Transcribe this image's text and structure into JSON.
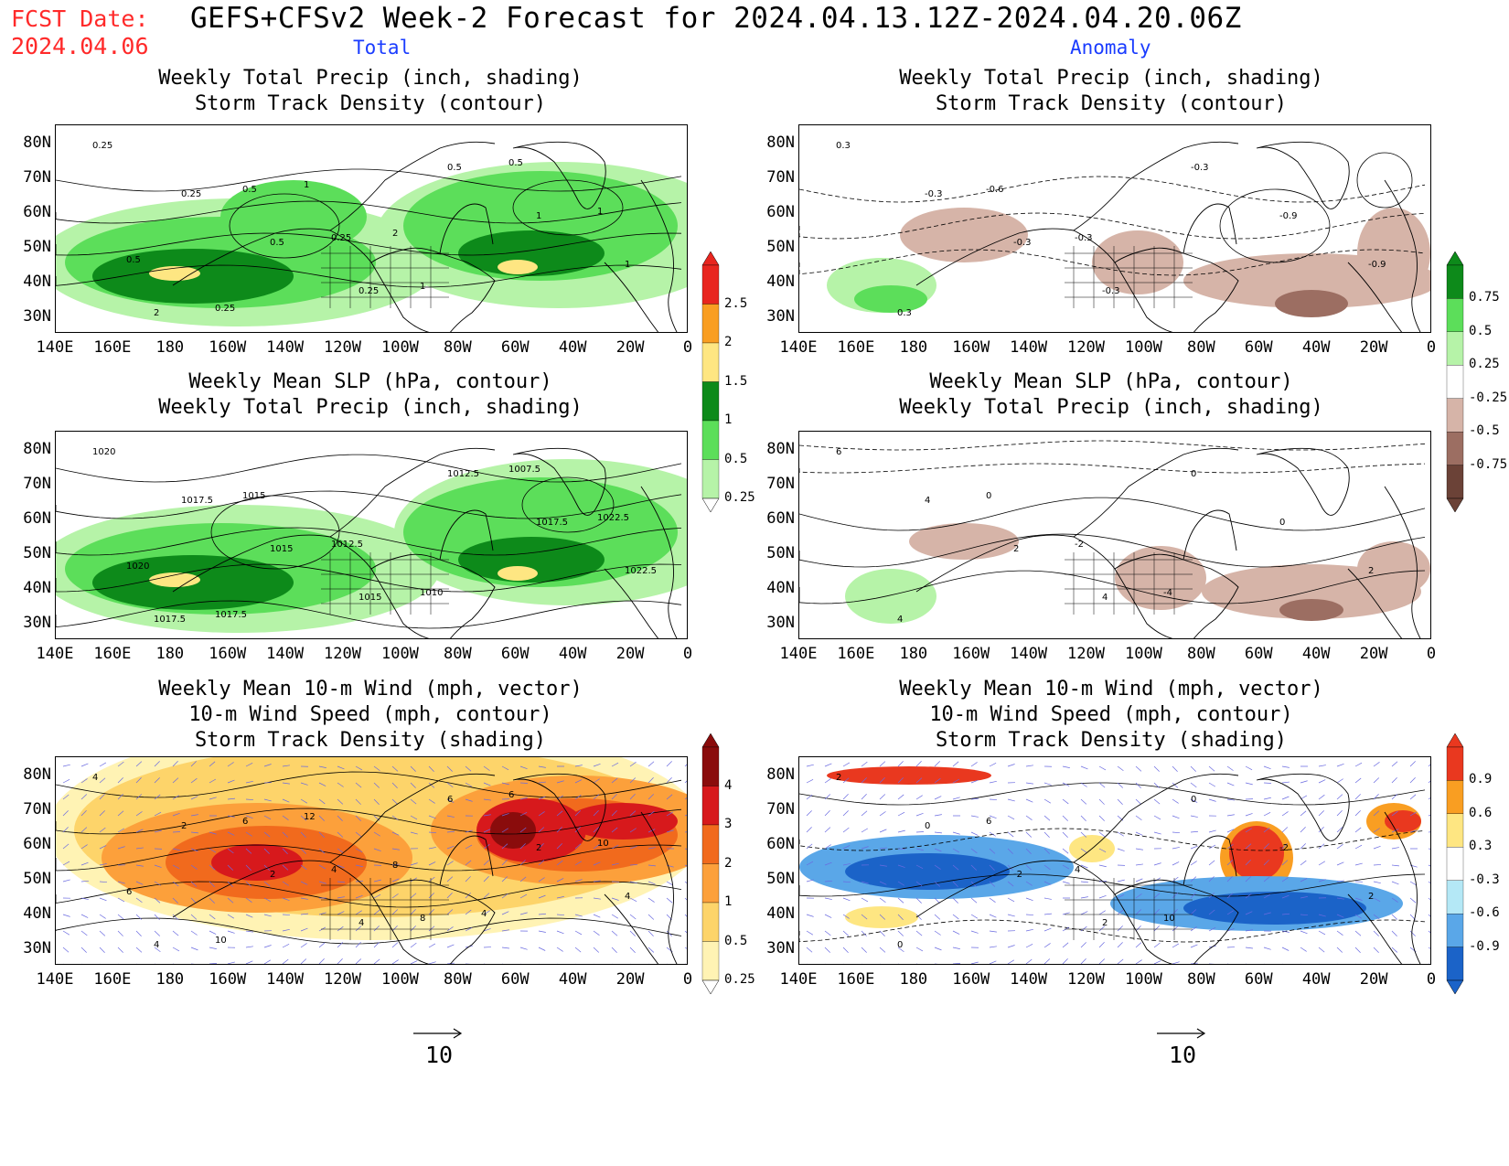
{
  "header": {
    "fcst_label": "FCST Date:",
    "fcst_date": "2024.04.06",
    "title": "GEFS+CFSv2 Week-2 Forecast for 2024.04.13.12Z-2024.04.20.06Z",
    "col_total": "Total",
    "col_anomaly": "Anomaly"
  },
  "axes": {
    "lat_labels": [
      "80N",
      "70N",
      "60N",
      "50N",
      "40N",
      "30N"
    ],
    "lon_labels": [
      "140E",
      "160E",
      "180",
      "160W",
      "140W",
      "120W",
      "100W",
      "80W",
      "60W",
      "40W",
      "20W",
      "0"
    ]
  },
  "panels": [
    {
      "id": "total-precip-storm",
      "title1": "Weekly Total Precip (inch, shading)",
      "title2": "Storm Track Density (contour)",
      "title3": "",
      "contour_labels": [
        "0.25",
        "0.25",
        "0.5",
        "0.25",
        "0.5",
        "1",
        "1",
        "2",
        "0.5",
        "0.25",
        "1",
        "0.5",
        "1",
        "0.5",
        "0.25",
        "1",
        "2"
      ]
    },
    {
      "id": "anom-precip-storm",
      "title1": "Weekly Total Precip (inch, shading)",
      "title2": "Storm Track Density (contour)",
      "title3": "",
      "contour_labels": [
        "0.3",
        "-0.3",
        "-0.3",
        "-0.3",
        "-0.3",
        "-0.9",
        "-0.9",
        "0.3",
        "-0.6",
        "-0.3"
      ]
    },
    {
      "id": "total-slp-precip",
      "title1": "Weekly Mean SLP (hPa, contour)",
      "title2": "Weekly Total Precip (inch, shading)",
      "title3": "",
      "contour_labels": [
        "1020",
        "1017.5",
        "1015",
        "1015",
        "1012.5",
        "1017.5",
        "1022.5",
        "1017.5",
        "1015",
        "1012.5",
        "1010",
        "1007.5",
        "1022.5",
        "1020",
        "1017.5"
      ]
    },
    {
      "id": "anom-slp-precip",
      "title1": "Weekly Mean SLP (hPa, contour)",
      "title2": "Weekly Total Precip (inch, shading)",
      "title3": "",
      "contour_labels": [
        "6",
        "4",
        "2",
        "4",
        "0",
        "0",
        "2",
        "4",
        "0",
        "-2",
        "-4"
      ]
    },
    {
      "id": "total-wind-storm",
      "title1": "Weekly Mean 10-m Wind (mph, vector)",
      "title2": "10-m Wind Speed (mph, contour)",
      "title3": "Storm Track Density (shading)",
      "contour_labels": [
        "4",
        "2",
        "2",
        "4",
        "6",
        "2",
        "4",
        "4",
        "6",
        "4",
        "8",
        "6",
        "10",
        "6",
        "10",
        "12",
        "8",
        "4"
      ]
    },
    {
      "id": "anom-wind-storm",
      "title1": "Weekly Mean 10-m Wind (mph, vector)",
      "title2": "10-m Wind Speed (mph, contour)",
      "title3": "Storm Track Density (shading)",
      "contour_labels": [
        "2",
        "0",
        "-2",
        "2",
        "0",
        "-2",
        "2",
        "0",
        "6",
        "4",
        "10"
      ]
    }
  ],
  "colorbars": {
    "precip_total": {
      "labels": [
        "2.5",
        "2",
        "1.5",
        "1",
        "0.5",
        "0.25"
      ],
      "colors": [
        "#e8251f",
        "#f99e22",
        "#fee682",
        "#0d8a1a",
        "#5cde5a",
        "#b6f3a8"
      ]
    },
    "precip_anom": {
      "labels": [
        "0.75",
        "0.5",
        "0.25",
        "-0.25",
        "-0.5",
        "-0.75"
      ],
      "colors": [
        "#0d8a1a",
        "#5cde5a",
        "#b6f3a8",
        "#ffffff",
        "#d6b4a8",
        "#9c6e62",
        "#6b4237"
      ]
    },
    "storm_total": {
      "labels": [
        "4",
        "3",
        "2",
        "1",
        "0.5",
        "0.25"
      ],
      "colors": [
        "#8a0c0c",
        "#d7191c",
        "#f16a1d",
        "#fca03b",
        "#fdd46a",
        "#fff3b4"
      ]
    },
    "storm_anom": {
      "labels": [
        "0.9",
        "0.6",
        "0.3",
        "-0.3",
        "-0.6",
        "-0.9"
      ],
      "colors": [
        "#e9381f",
        "#f99e22",
        "#fee682",
        "#ffffff",
        "#b4e8f6",
        "#5aa7e8",
        "#1b63c8"
      ]
    }
  },
  "vector_reference": {
    "value": "10"
  }
}
